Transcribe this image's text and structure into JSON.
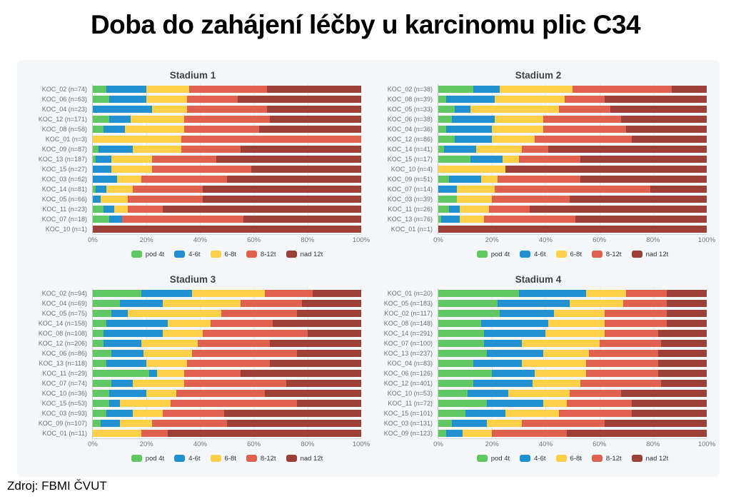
{
  "page_title": "Doba do zahájení léčby u karcinomu plic C34",
  "source": "Zdroj: FBMI ČVUT",
  "colors": {
    "pod 4t": "#61c861",
    "4-6t": "#2191d0",
    "6-8t": "#fdd04a",
    "8-12t": "#e0614f",
    "nad 12t": "#9d4037"
  },
  "legend_items": [
    "pod 4t",
    "4-6t",
    "6-8t",
    "8-12t",
    "nad 12t"
  ],
  "x_axis": {
    "ticks": [
      "0%",
      "20%",
      "40%",
      "60%",
      "80%",
      "100%"
    ],
    "tick_positions": [
      0,
      20,
      40,
      60,
      80,
      100
    ]
  },
  "chart_data": [
    {
      "type": "bar",
      "orientation": "horizontal",
      "stacked": true,
      "title": "Stadium 1",
      "xlabel": "",
      "ylabel": "",
      "xlim": [
        0,
        100
      ],
      "units": "percent",
      "grid": true,
      "legend_position": "bottom",
      "categories": [
        "KOC_02 (n=74)",
        "KOC_06 (n=63)",
        "KOC_04 (n=23)",
        "KOC_12 (n=171)",
        "KOC_08 (n=58)",
        "KOC_01 (n=3)",
        "KOC_09 (n=87)",
        "KOC_13 (n=187)",
        "KOC_15 (n=27)",
        "KOC_03 (n=62)",
        "KOC_14 (n=81)",
        "KOC_05 (n=66)",
        "KOC_11 (n=23)",
        "KOC_07 (n=18)",
        "KOC_10 (n=1)"
      ],
      "series": [
        {
          "name": "pod 4t",
          "values": [
            5,
            6,
            0,
            6,
            4,
            0,
            2,
            1,
            0,
            0,
            1,
            0,
            4,
            6,
            0
          ]
        },
        {
          "name": "4-6t",
          "values": [
            15,
            14,
            22,
            8,
            8,
            0,
            13,
            6,
            7,
            9,
            4,
            3,
            4,
            5,
            0
          ]
        },
        {
          "name": "6-8t",
          "values": [
            16,
            15,
            13,
            20,
            22,
            33,
            18,
            15,
            15,
            9,
            10,
            10,
            5,
            0,
            0
          ]
        },
        {
          "name": "8-12t",
          "values": [
            29,
            19,
            30,
            32,
            28,
            67,
            22,
            24,
            37,
            32,
            26,
            28,
            13,
            45,
            0
          ]
        },
        {
          "name": "nad 12t",
          "values": [
            35,
            46,
            35,
            34,
            38,
            0,
            45,
            54,
            41,
            50,
            59,
            59,
            74,
            44,
            100
          ]
        }
      ]
    },
    {
      "type": "bar",
      "orientation": "horizontal",
      "stacked": true,
      "title": "Stadium 2",
      "xlabel": "",
      "ylabel": "",
      "xlim": [
        0,
        100
      ],
      "units": "percent",
      "grid": true,
      "legend_position": "bottom",
      "categories": [
        "KOC_02 (n=38)",
        "KOC_08 (n=39)",
        "KOC_05 (n=33)",
        "KOC_06 (n=38)",
        "KOC_04 (n=36)",
        "KOC_12 (n=86)",
        "KOC_14 (n=41)",
        "KOC_15 (n=17)",
        "KOC_10 (n=4)",
        "KOC_09 (n=51)",
        "KOC_07 (n=14)",
        "KOC_03 (n=39)",
        "KOC_11 (n=26)",
        "KOC_13 (n=76)",
        "KOC_01 (n=1)"
      ],
      "series": [
        {
          "name": "pod 4t",
          "values": [
            13,
            3,
            6,
            5,
            3,
            6,
            2,
            12,
            0,
            4,
            0,
            7,
            4,
            1,
            0
          ]
        },
        {
          "name": "4-6t",
          "values": [
            10,
            18,
            6,
            16,
            17,
            14,
            12,
            12,
            0,
            12,
            7,
            0,
            4,
            7,
            0
          ]
        },
        {
          "name": "6-8t",
          "values": [
            27,
            26,
            33,
            18,
            19,
            16,
            17,
            6,
            25,
            6,
            14,
            13,
            11,
            9,
            0
          ]
        },
        {
          "name": "8-12t",
          "values": [
            37,
            15,
            19,
            29,
            31,
            36,
            10,
            23,
            0,
            31,
            58,
            29,
            15,
            34,
            0
          ]
        },
        {
          "name": "nad 12t",
          "values": [
            13,
            38,
            36,
            32,
            30,
            28,
            59,
            47,
            75,
            47,
            21,
            51,
            66,
            49,
            100
          ]
        }
      ]
    },
    {
      "type": "bar",
      "orientation": "horizontal",
      "stacked": true,
      "title": "Stadium 3",
      "xlabel": "",
      "ylabel": "",
      "xlim": [
        0,
        100
      ],
      "units": "percent",
      "grid": true,
      "legend_position": "bottom",
      "categories": [
        "KOC_02 (n=94)",
        "KOC_04 (n=69)",
        "KOC_05 (n=75)",
        "KOC_14 (n=158)",
        "KOC_08 (n=108)",
        "KOC_12 (n=206)",
        "KOC_06 (n=86)",
        "KOC_13 (n=118)",
        "KOC_11 (n=29)",
        "KOC_07 (n=74)",
        "KOC_10 (n=36)",
        "KOC_15 (n=53)",
        "KOC_03 (n=93)",
        "KOC_09 (n=107)",
        "KOC_01 (n=11)"
      ],
      "series": [
        {
          "name": "pod 4t",
          "values": [
            18,
            10,
            7,
            5,
            4,
            4,
            7,
            5,
            21,
            7,
            6,
            6,
            5,
            3,
            0
          ]
        },
        {
          "name": "4-6t",
          "values": [
            19,
            16,
            6,
            23,
            22,
            14,
            12,
            15,
            3,
            8,
            14,
            4,
            10,
            7,
            0
          ]
        },
        {
          "name": "6-8t",
          "values": [
            27,
            29,
            35,
            16,
            15,
            21,
            18,
            15,
            10,
            19,
            11,
            19,
            11,
            12,
            18
          ]
        },
        {
          "name": "8-12t",
          "values": [
            18,
            23,
            28,
            23,
            39,
            27,
            39,
            31,
            21,
            38,
            33,
            47,
            23,
            28,
            10
          ]
        },
        {
          "name": "nad 12t",
          "values": [
            18,
            22,
            24,
            33,
            20,
            34,
            24,
            34,
            45,
            28,
            36,
            24,
            51,
            50,
            72
          ]
        }
      ]
    },
    {
      "type": "bar",
      "orientation": "horizontal",
      "stacked": true,
      "title": "Stadium 4",
      "xlabel": "",
      "ylabel": "",
      "xlim": [
        0,
        100
      ],
      "units": "percent",
      "grid": true,
      "legend_position": "bottom",
      "categories": [
        "KOC_01 (n=20)",
        "KOC_05 (n=183)",
        "KOC_02 (n=117)",
        "KOC_08 (n=148)",
        "KOC_14 (n=291)",
        "KOC_07 (n=100)",
        "KOC_13 (n=237)",
        "KOC_04 (n=83)",
        "KOC_06 (n=126)",
        "KOC_12 (n=401)",
        "KOC_10 (n=53)",
        "KOC_11 (n=72)",
        "KOC_15 (n=101)",
        "KOC_03 (n=131)",
        "KOC_09 (n=123)"
      ],
      "series": [
        {
          "name": "pod 4t",
          "values": [
            30,
            22,
            23,
            16,
            17,
            17,
            18,
            13,
            20,
            13,
            11,
            18,
            10,
            5,
            3
          ]
        },
        {
          "name": "4-6t",
          "values": [
            25,
            27,
            20,
            25,
            23,
            14,
            21,
            18,
            16,
            22,
            15,
            21,
            15,
            13,
            6
          ]
        },
        {
          "name": "6-8t",
          "values": [
            15,
            20,
            19,
            21,
            22,
            29,
            17,
            24,
            19,
            18,
            23,
            9,
            20,
            13,
            11
          ]
        },
        {
          "name": "8-12t",
          "values": [
            15,
            16,
            23,
            23,
            20,
            23,
            26,
            27,
            27,
            30,
            19,
            24,
            27,
            31,
            28
          ]
        },
        {
          "name": "nad 12t",
          "values": [
            15,
            15,
            15,
            15,
            18,
            17,
            18,
            18,
            18,
            17,
            32,
            28,
            28,
            38,
            52
          ]
        }
      ]
    }
  ]
}
